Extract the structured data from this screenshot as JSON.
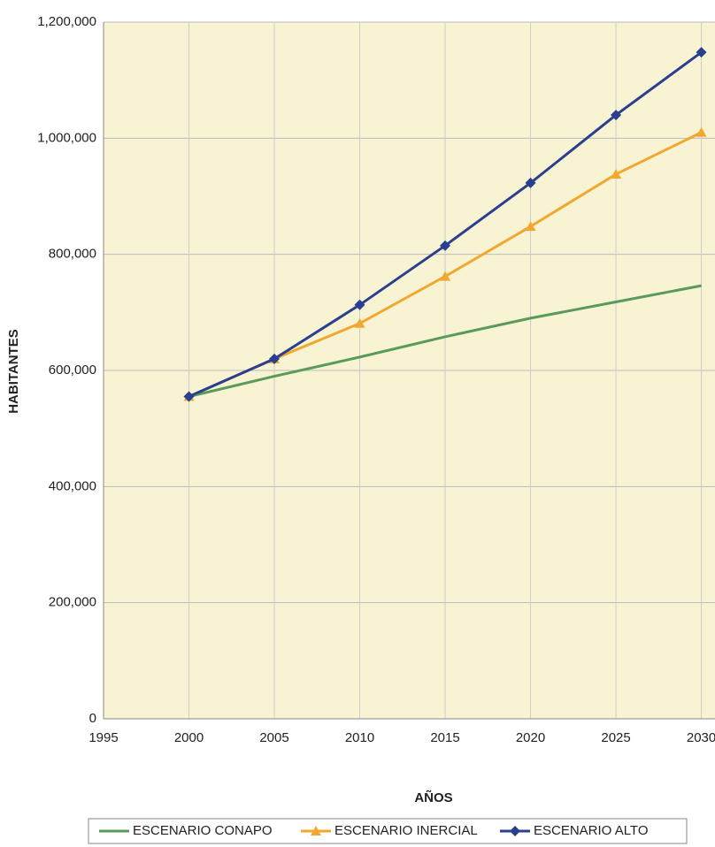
{
  "chart_data": {
    "type": "line",
    "x_label": "AÑOS",
    "y_label": "HABITANTES",
    "x": [
      2000,
      2005,
      2010,
      2015,
      2020,
      2025,
      2030
    ],
    "series": [
      {
        "name": "ESCENARIO CONAPO",
        "color": "#5a9a5a",
        "marker": "none",
        "values": [
          555000,
          590000,
          623000,
          658000,
          690000,
          718000,
          746000
        ]
      },
      {
        "name": "ESCENARIO INERCIAL",
        "color": "#f0a830",
        "marker": "triangle",
        "values": [
          555000,
          620000,
          681000,
          762000,
          848000,
          938000,
          1010000
        ]
      },
      {
        "name": "ESCENARIO ALTO",
        "color": "#2b3f8f",
        "marker": "diamond",
        "values": [
          555000,
          620000,
          713000,
          815000,
          923000,
          1040000,
          1148000
        ]
      }
    ],
    "xlim": [
      1995,
      2030.8
    ],
    "xticks": [
      1995,
      2000,
      2005,
      2010,
      2015,
      2020,
      2025,
      2030
    ],
    "ylim": [
      0,
      1200000
    ],
    "yticks": [
      0,
      {
        "value": 200000,
        "label": "200,000"
      },
      {
        "value": 400000,
        "label": "400,000"
      },
      {
        "value": 600000,
        "label": "600,000"
      },
      {
        "value": 800000,
        "label": "800,000"
      },
      {
        "value": 1000000,
        "label": "1,000,000"
      },
      {
        "value": 1200000,
        "label": "1,200,000"
      }
    ],
    "grid": true,
    "legend": "bottom"
  }
}
